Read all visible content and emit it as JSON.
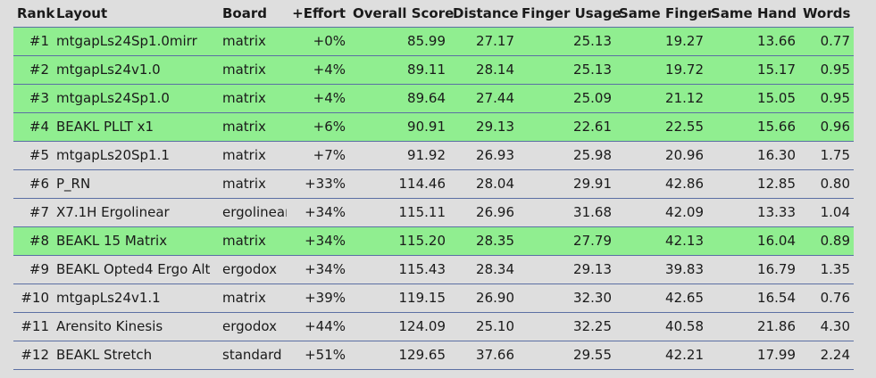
{
  "table": {
    "columns": [
      "Rank",
      "Layout",
      "Board",
      "+Effort",
      "Overall Score",
      "Distance",
      "Finger Usage",
      "Same Finger",
      "Same Hand",
      "Words"
    ],
    "highlight_color": "#90ee90",
    "rows": [
      {
        "rank": "#1",
        "layout": "mtgapLs24Sp1.0mirr",
        "board": "matrix",
        "effort": "+0%",
        "score": "85.99",
        "distance": "27.17",
        "finger": "25.13",
        "same_finger": "19.27",
        "same_hand": "13.66",
        "words": "0.77",
        "highlighted": true
      },
      {
        "rank": "#2",
        "layout": "mtgapLs24v1.0",
        "board": "matrix",
        "effort": "+4%",
        "score": "89.11",
        "distance": "28.14",
        "finger": "25.13",
        "same_finger": "19.72",
        "same_hand": "15.17",
        "words": "0.95",
        "highlighted": true
      },
      {
        "rank": "#3",
        "layout": "mtgapLs24Sp1.0",
        "board": "matrix",
        "effort": "+4%",
        "score": "89.64",
        "distance": "27.44",
        "finger": "25.09",
        "same_finger": "21.12",
        "same_hand": "15.05",
        "words": "0.95",
        "highlighted": true
      },
      {
        "rank": "#4",
        "layout": "BEAKL PLLT x1",
        "board": "matrix",
        "effort": "+6%",
        "score": "90.91",
        "distance": "29.13",
        "finger": "22.61",
        "same_finger": "22.55",
        "same_hand": "15.66",
        "words": "0.96",
        "highlighted": true
      },
      {
        "rank": "#5",
        "layout": "mtgapLs20Sp1.1",
        "board": "matrix",
        "effort": "+7%",
        "score": "91.92",
        "distance": "26.93",
        "finger": "25.98",
        "same_finger": "20.96",
        "same_hand": "16.30",
        "words": "1.75",
        "highlighted": false
      },
      {
        "rank": "#6",
        "layout": "P_RN",
        "board": "matrix",
        "effort": "+33%",
        "score": "114.46",
        "distance": "28.04",
        "finger": "29.91",
        "same_finger": "42.86",
        "same_hand": "12.85",
        "words": "0.80",
        "highlighted": false
      },
      {
        "rank": "#7",
        "layout": "X7.1H Ergolinear",
        "board": "ergolinear",
        "effort": "+34%",
        "score": "115.11",
        "distance": "26.96",
        "finger": "31.68",
        "same_finger": "42.09",
        "same_hand": "13.33",
        "words": "1.04",
        "highlighted": false
      },
      {
        "rank": "#8",
        "layout": "BEAKL 15 Matrix",
        "board": "matrix",
        "effort": "+34%",
        "score": "115.20",
        "distance": "28.35",
        "finger": "27.79",
        "same_finger": "42.13",
        "same_hand": "16.04",
        "words": "0.89",
        "highlighted": true
      },
      {
        "rank": "#9",
        "layout": "BEAKL Opted4 Ergo Alt",
        "board": "ergodox",
        "effort": "+34%",
        "score": "115.43",
        "distance": "28.34",
        "finger": "29.13",
        "same_finger": "39.83",
        "same_hand": "16.79",
        "words": "1.35",
        "highlighted": false
      },
      {
        "rank": "#10",
        "layout": "mtgapLs24v1.1",
        "board": "matrix",
        "effort": "+39%",
        "score": "119.15",
        "distance": "26.90",
        "finger": "32.30",
        "same_finger": "42.65",
        "same_hand": "16.54",
        "words": "0.76",
        "highlighted": false
      },
      {
        "rank": "#11",
        "layout": "Arensito Kinesis",
        "board": "ergodox",
        "effort": "+44%",
        "score": "124.09",
        "distance": "25.10",
        "finger": "32.25",
        "same_finger": "40.58",
        "same_hand": "21.86",
        "words": "4.30",
        "highlighted": false
      },
      {
        "rank": "#12",
        "layout": "BEAKL Stretch",
        "board": "standard",
        "effort": "+51%",
        "score": "129.65",
        "distance": "37.66",
        "finger": "29.55",
        "same_finger": "42.21",
        "same_hand": "17.99",
        "words": "2.24",
        "highlighted": false
      }
    ]
  }
}
